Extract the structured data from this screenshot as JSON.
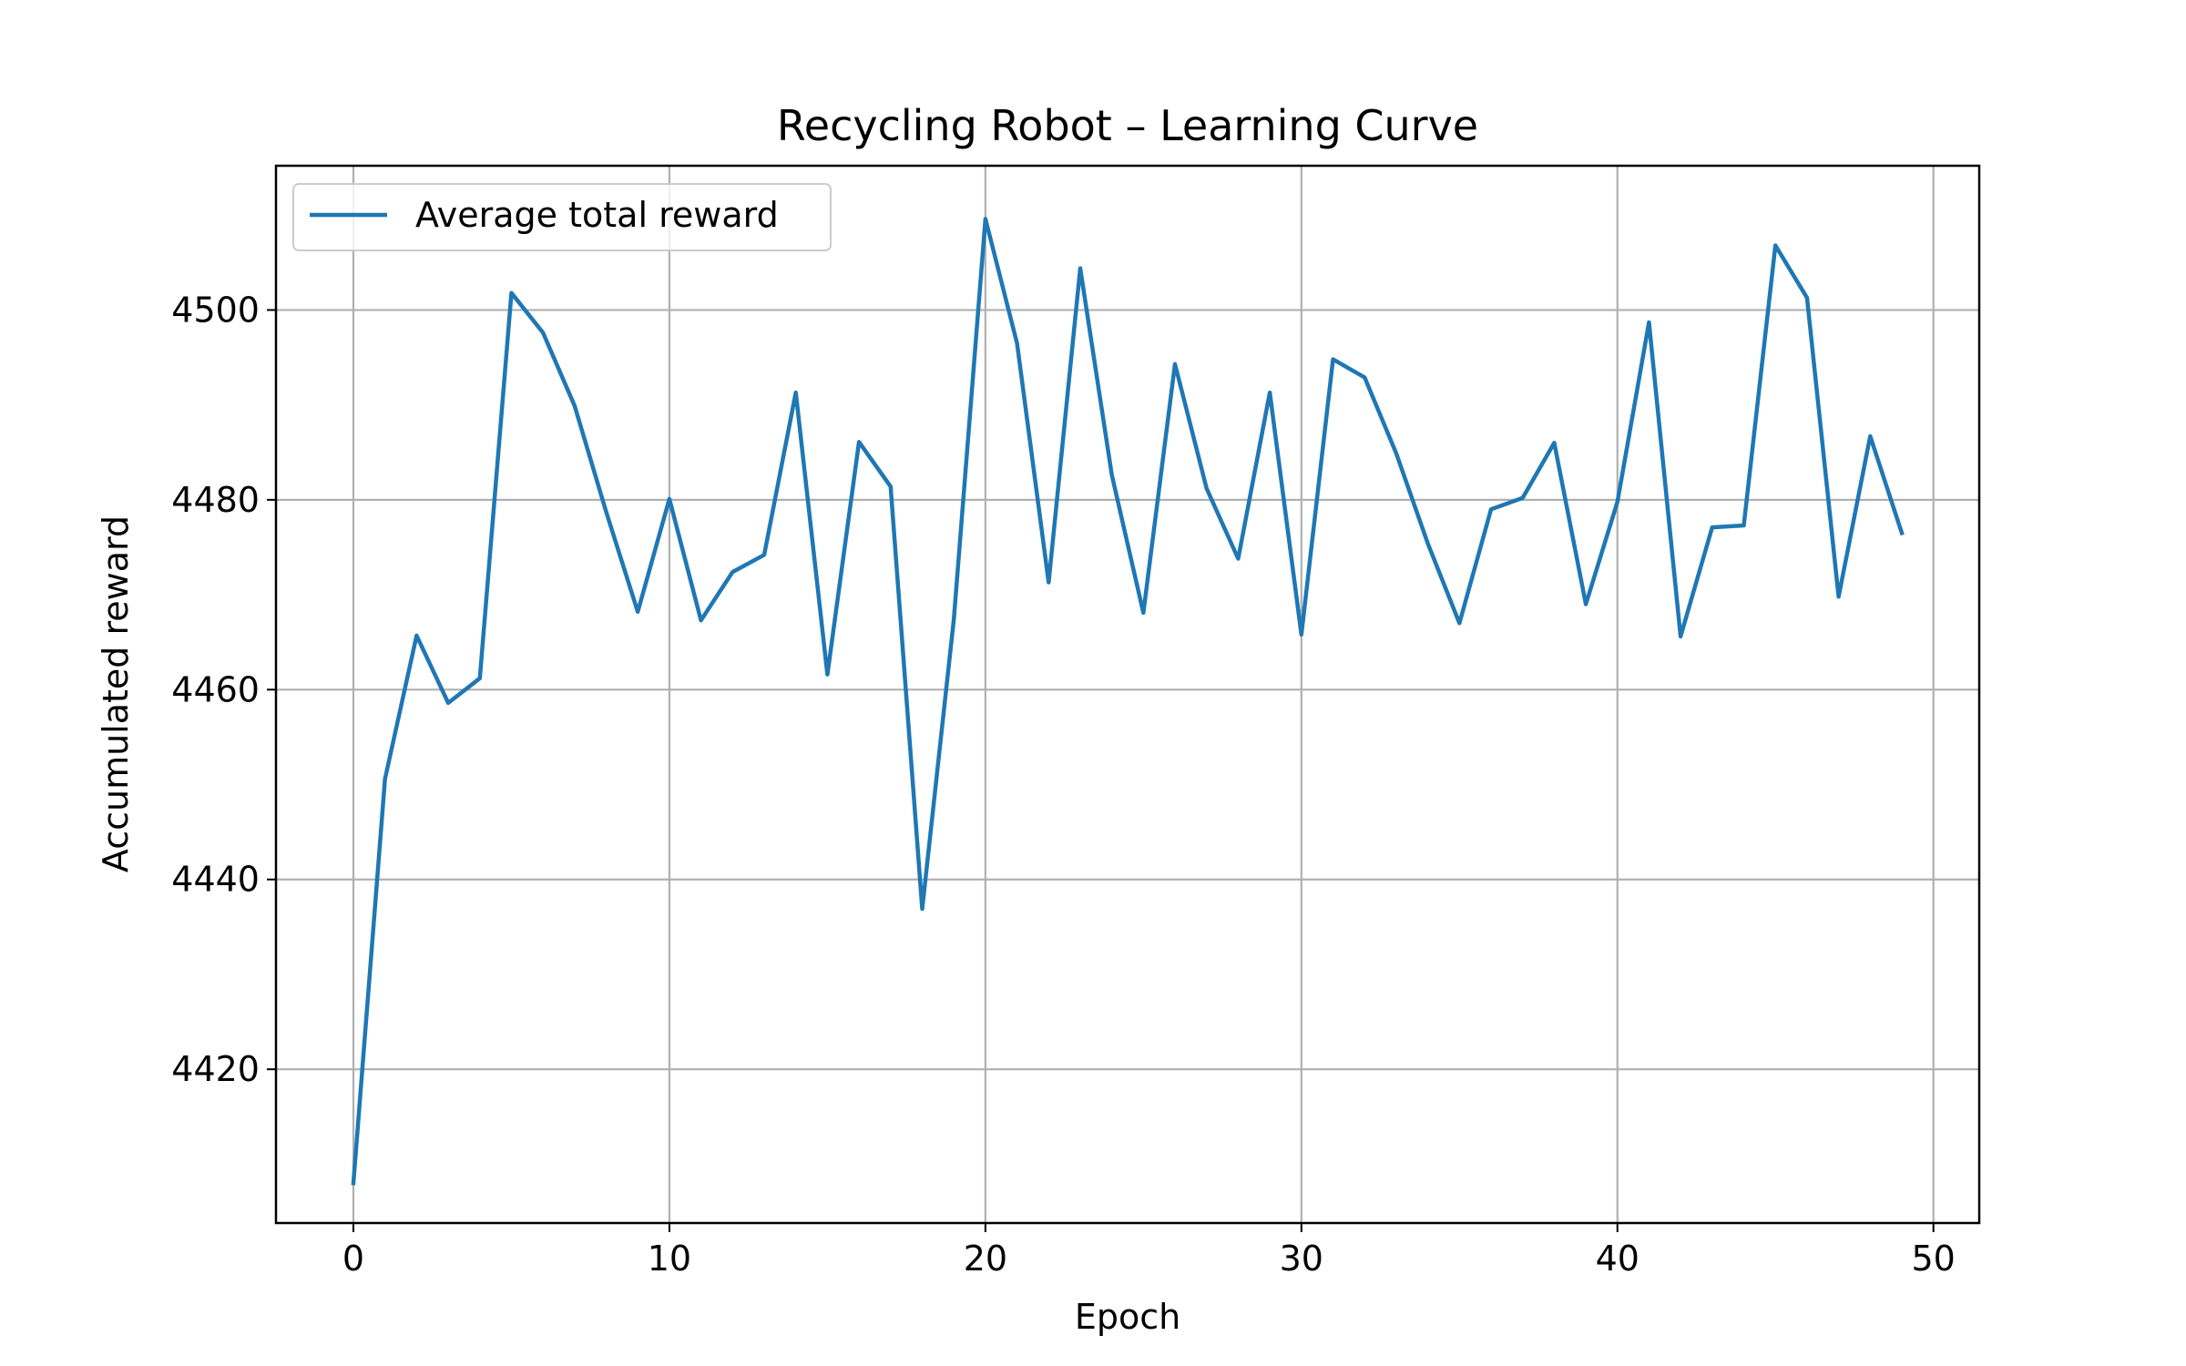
{
  "chart_data": {
    "type": "line",
    "title": "Recycling Robot – Learning Curve",
    "xlabel": "Epoch",
    "ylabel": "Accumulated reward",
    "xlim": [
      -2.45,
      51.45
    ],
    "ylim": [
      4403.8,
      4515.2
    ],
    "xticks": [
      0,
      10,
      20,
      30,
      40,
      50
    ],
    "yticks": [
      4420,
      4440,
      4460,
      4480,
      4500
    ],
    "grid": true,
    "legend_position": "upper left",
    "series": [
      {
        "name": "Average total reward",
        "color": "#1f77b4",
        "x": [
          0,
          1,
          2,
          3,
          4,
          5,
          6,
          7,
          8,
          9,
          10,
          11,
          12,
          13,
          14,
          15,
          16,
          17,
          18,
          19,
          20,
          21,
          22,
          23,
          24,
          25,
          26,
          27,
          28,
          29,
          30,
          31,
          32,
          33,
          34,
          35,
          36,
          37,
          38,
          39,
          40,
          41,
          42,
          43,
          44,
          45,
          46,
          47,
          48,
          49
        ],
        "y": [
          4408,
          4450.6,
          4465.7,
          4458.6,
          4461.2,
          4501.8,
          4497.6,
          4489.9,
          4478.7,
          4468.2,
          4480.1,
          4467.3,
          4472.4,
          4474.2,
          4491.3,
          4461.6,
          4486.1,
          4481.4,
          4436.9,
          4467.4,
          4509.6,
          4496.5,
          4471.3,
          4504.4,
          4482.6,
          4468.1,
          4494.3,
          4481.2,
          4473.8,
          4491.3,
          4465.8,
          4494.8,
          4492.9,
          4484.9,
          4475.4,
          4467,
          4479,
          4480.2,
          4486,
          4469,
          4479.8,
          4498.7,
          4465.6,
          4477.1,
          4477.3,
          4506.8,
          4501.3,
          4469.8,
          4486.7,
          4476.5
        ]
      }
    ]
  }
}
